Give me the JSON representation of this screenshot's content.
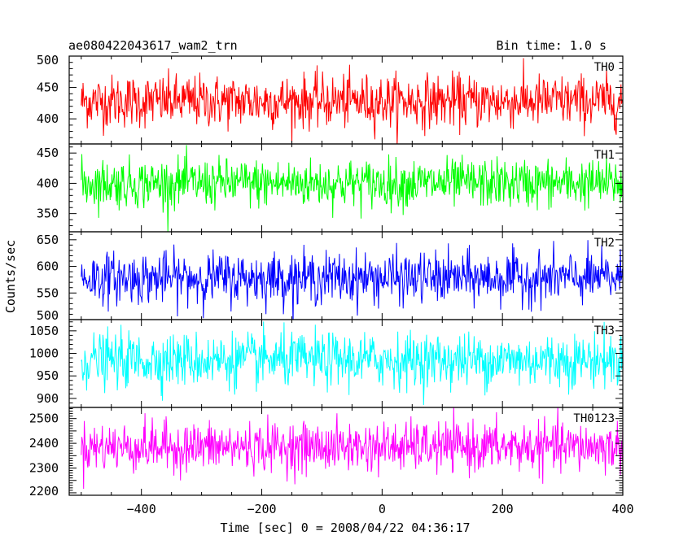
{
  "chart_data": {
    "type": "line",
    "title": "ae080422043617_wam2_trn",
    "subtitle": "Bin time: 1.0 s",
    "xlabel": "Time [sec] 0 = 2008/04/22 04:36:17",
    "ylabel": "Counts/sec",
    "xlim": [
      -520,
      400
    ],
    "x_ticks": [
      -400,
      -200,
      0,
      200,
      400
    ],
    "x_range": [
      -500,
      400
    ],
    "bin_time": 1.0,
    "grid": false,
    "series": [
      {
        "name": "TH0",
        "color": "#ff0000",
        "ylim": [
          360,
          500
        ],
        "yticks": [
          400,
          450,
          500
        ],
        "mean": 428,
        "sd": 21
      },
      {
        "name": "TH1",
        "color": "#00ff00",
        "ylim": [
          320,
          465
        ],
        "yticks": [
          350,
          400,
          450
        ],
        "mean": 400,
        "sd": 20
      },
      {
        "name": "TH2",
        "color": "#0000ff",
        "ylim": [
          500,
          665
        ],
        "yticks": [
          500,
          550,
          600,
          650
        ],
        "mean": 578,
        "sd": 24
      },
      {
        "name": "TH3",
        "color": "#00ffff",
        "ylim": [
          880,
          1075
        ],
        "yticks": [
          900,
          950,
          1000,
          1050
        ],
        "mean": 985,
        "sd": 30
      },
      {
        "name": "TH0123",
        "color": "#ff00ff",
        "ylim": [
          2190,
          2545
        ],
        "yticks": [
          2200,
          2300,
          2400,
          2500
        ],
        "mean": 2385,
        "sd": 50
      }
    ]
  }
}
